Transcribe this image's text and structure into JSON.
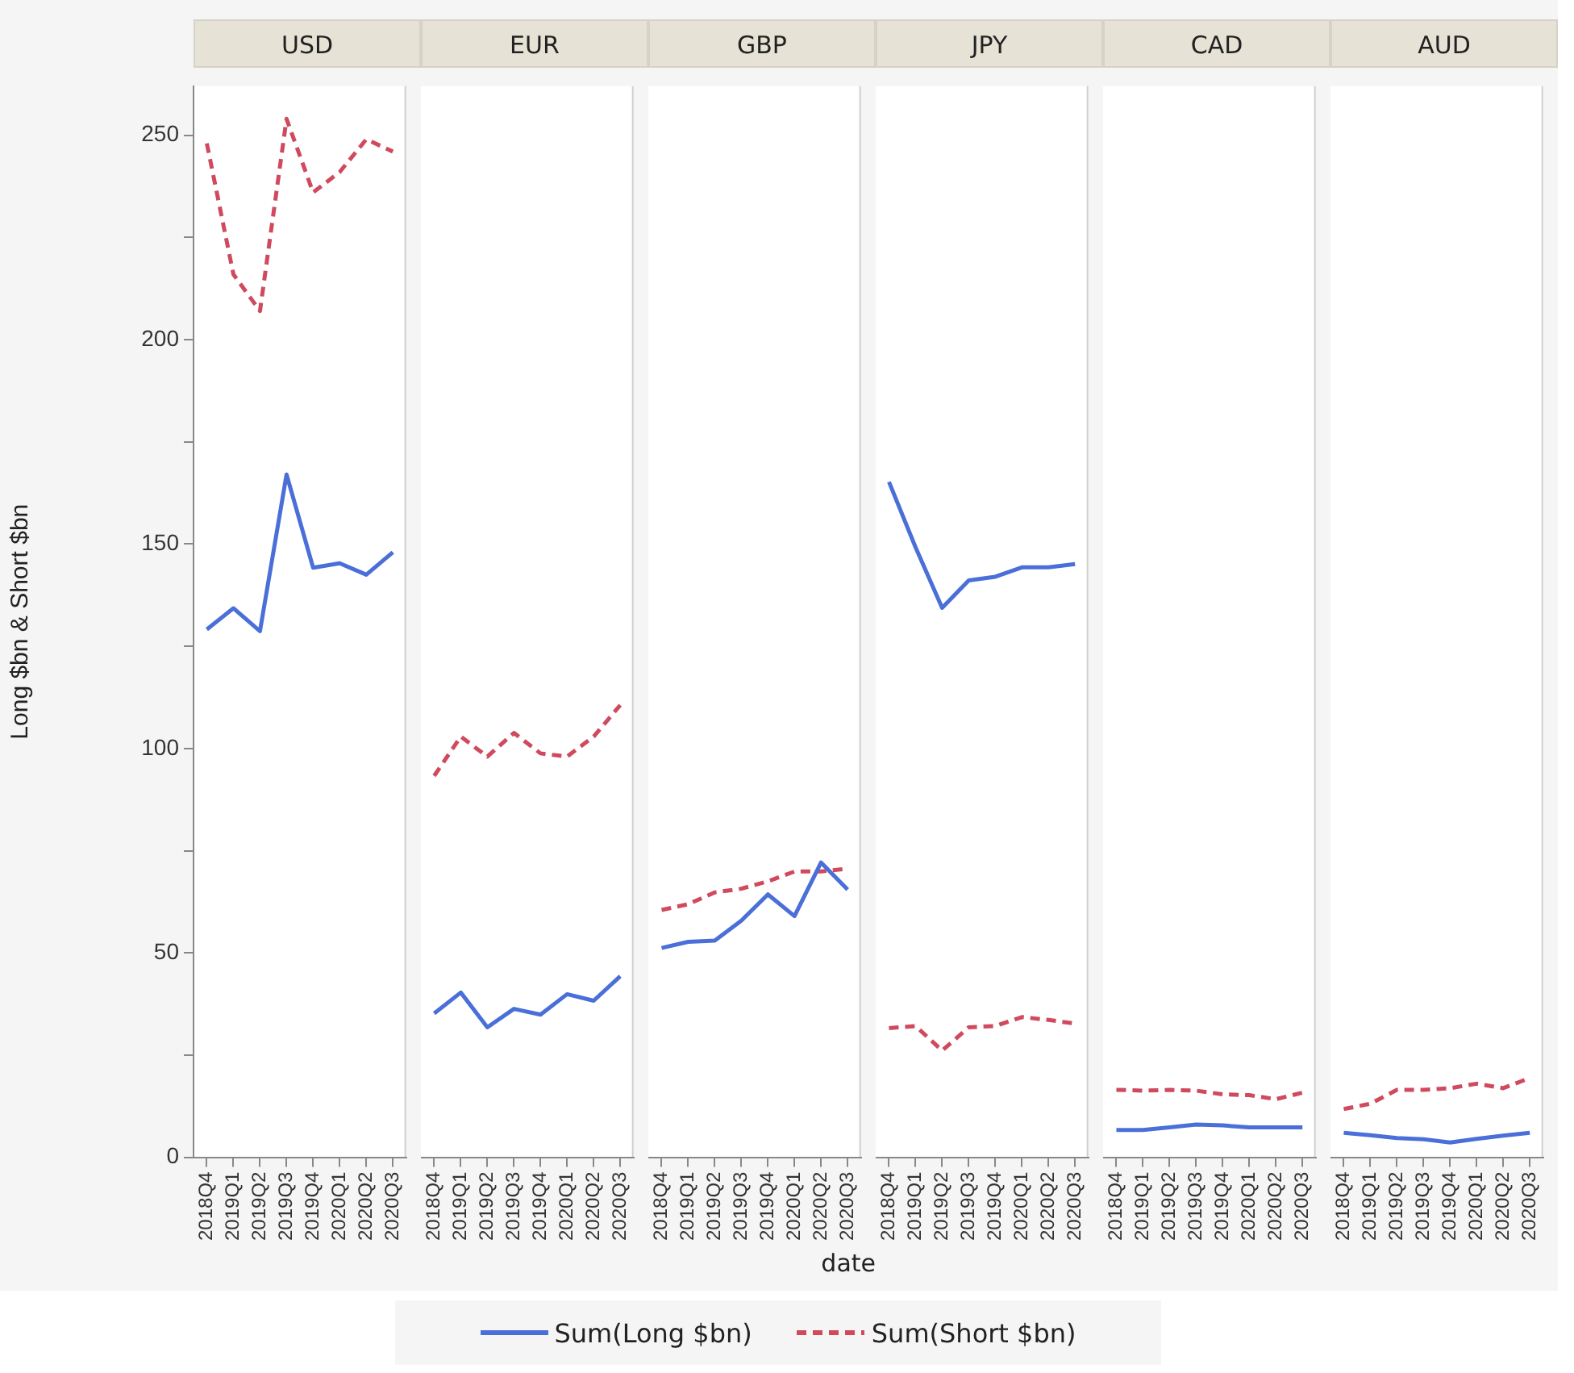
{
  "chart_data": [
    {
      "type": "line",
      "title": "USD",
      "ylabel": "Long $bn & Short $bn",
      "legend": "bottom",
      "categories": [
        "2018Q4",
        "2019Q1",
        "2019Q2",
        "2019Q3",
        "2019Q4",
        "2020Q1",
        "2020Q2",
        "2020Q3"
      ],
      "ylim": [
        0,
        262
      ],
      "yticks": [
        0,
        {
          "value": 25,
          "label": null
        },
        50,
        {
          "value": 75,
          "label": null
        },
        100,
        {
          "value": 125,
          "label": null
        },
        150,
        {
          "value": 175,
          "label": null
        },
        200,
        {
          "value": 225,
          "label": null
        },
        250
      ],
      "series": [
        {
          "name": "Sum(Long $bn)",
          "color": "#4a6fd8",
          "line_style": "solid",
          "values": [
            129.1,
            134.3,
            128.7,
            167.0,
            144.2,
            145.3,
            142.5,
            148.0
          ]
        },
        {
          "name": "Sum(Short $bn)",
          "color": "#d04a5e",
          "line_style": "dashed",
          "values": [
            248,
            216,
            207,
            254,
            236,
            241,
            249,
            246
          ]
        }
      ]
    },
    {
      "type": "line",
      "title": "EUR",
      "tick_labels": "x",
      "categories": [
        "2018Q4",
        "2019Q1",
        "2019Q2",
        "2019Q3",
        "2019Q4",
        "2020Q1",
        "2020Q2",
        "2020Q3"
      ],
      "ylim": [
        0,
        262
      ],
      "series": [
        {
          "color": "#4a6fd8",
          "line_style": "solid",
          "values": [
            35.2,
            40.3,
            31.8,
            36.3,
            34.9,
            39.9,
            38.3,
            44.3
          ]
        },
        {
          "color": "#d04a5e",
          "line_style": "dashed",
          "values": [
            93.3,
            102.9,
            98.0,
            103.8,
            98.8,
            98.0,
            102.9,
            110.6
          ]
        }
      ]
    },
    {
      "type": "line",
      "title": "GBP",
      "xlabel": "date",
      "tick_labels": "x",
      "categories": [
        "2018Q4",
        "2019Q1",
        "2019Q2",
        "2019Q3",
        "2019Q4",
        "2020Q1",
        "2020Q2",
        "2020Q3"
      ],
      "ylim": [
        0,
        262
      ],
      "series": [
        {
          "color": "#4a6fd8",
          "line_style": "solid",
          "values": [
            51.2,
            52.7,
            53.0,
            57.9,
            64.3,
            59.0,
            72.1,
            65.5
          ]
        },
        {
          "color": "#d04a5e",
          "line_style": "dashed",
          "values": [
            60.5,
            61.9,
            64.8,
            65.7,
            67.5,
            69.9,
            69.9,
            70.6
          ]
        }
      ]
    },
    {
      "type": "line",
      "title": "JPY",
      "tick_labels": "x",
      "categories": [
        "2018Q4",
        "2019Q1",
        "2019Q2",
        "2019Q3",
        "2019Q4",
        "2020Q1",
        "2020Q2",
        "2020Q3"
      ],
      "ylim": [
        0,
        262
      ],
      "series": [
        {
          "color": "#4a6fd8",
          "line_style": "solid",
          "values": [
            165.2,
            149.2,
            134.4,
            141.1,
            142.0,
            144.3,
            144.3,
            145.1
          ]
        },
        {
          "color": "#d04a5e",
          "line_style": "dashed",
          "values": [
            31.6,
            32.1,
            26.1,
            31.8,
            32.1,
            34.3,
            33.6,
            32.7
          ]
        }
      ]
    },
    {
      "type": "line",
      "title": "CAD",
      "tick_labels": "x",
      "categories": [
        "2018Q4",
        "2019Q1",
        "2019Q2",
        "2019Q3",
        "2019Q4",
        "2020Q1",
        "2020Q2",
        "2020Q3"
      ],
      "ylim": [
        0,
        262
      ],
      "series": [
        {
          "color": "#4a6fd8",
          "line_style": "solid",
          "values": [
            6.7,
            6.7,
            7.3,
            8.0,
            7.8,
            7.3,
            7.3,
            7.3
          ]
        },
        {
          "color": "#d04a5e",
          "line_style": "dashed",
          "values": [
            16.5,
            16.3,
            16.5,
            16.3,
            15.4,
            15.2,
            14.2,
            15.8
          ]
        }
      ]
    },
    {
      "type": "line",
      "title": "AUD",
      "tick_labels": "x",
      "categories": [
        "2018Q4",
        "2019Q1",
        "2019Q2",
        "2019Q3",
        "2019Q4",
        "2020Q1",
        "2020Q2",
        "2020Q3"
      ],
      "ylim": [
        0,
        262
      ],
      "series": [
        {
          "color": "#4a6fd8",
          "line_style": "solid",
          "values": [
            6.0,
            5.4,
            4.7,
            4.4,
            3.6,
            4.5,
            5.3,
            6.0
          ]
        },
        {
          "color": "#d04a5e",
          "line_style": "dashed",
          "values": [
            11.8,
            13.1,
            16.5,
            16.5,
            16.9,
            18.0,
            16.9,
            19.4
          ]
        }
      ]
    }
  ]
}
